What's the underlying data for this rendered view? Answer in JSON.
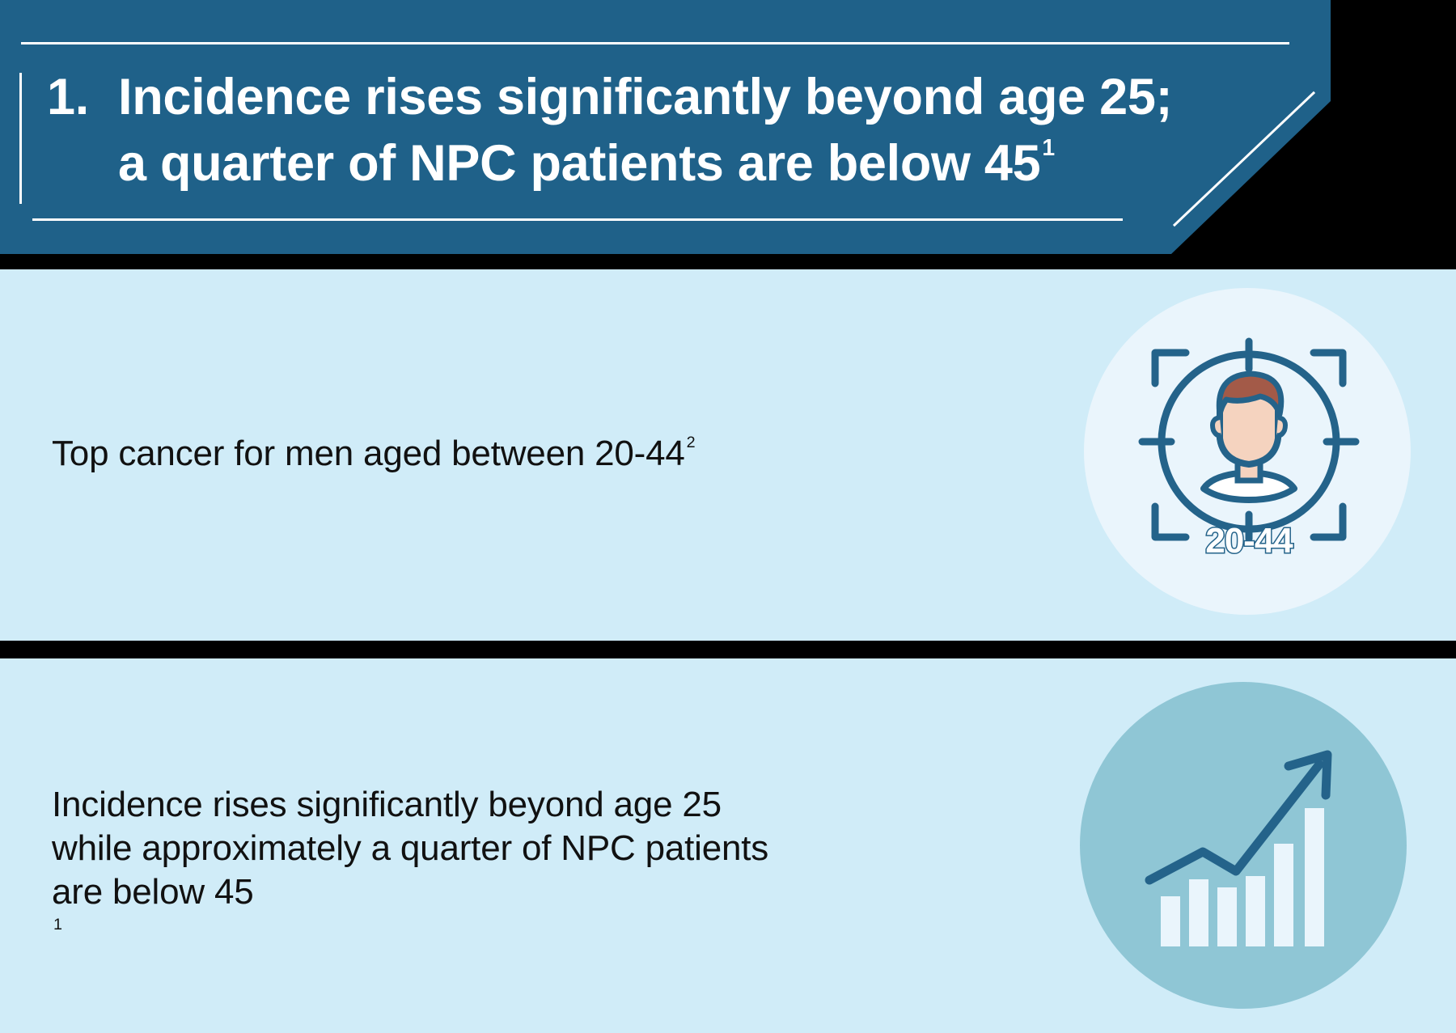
{
  "header": {
    "number": "1.",
    "line1": "Incidence rises significantly beyond age 25;",
    "line2": "a quarter of NPC patients are below 45",
    "line2_footnote": "1"
  },
  "panel1": {
    "text": "Top cancer for men aged between 20-44",
    "footnote": "2",
    "icon_label": "20-44",
    "icon": "target-person-icon"
  },
  "panel2": {
    "lines": [
      "Incidence rises significantly beyond age 25",
      "while approximately a quarter of NPC patients",
      "are below 45"
    ],
    "footnote": "1",
    "icon": "rising-bar-chart-icon"
  },
  "colors": {
    "header_bg": "#1f6189",
    "panel_bg": "#d0ecf8",
    "icon_circle_light": "#eaf5fc",
    "icon_circle_teal": "#8fc6d5",
    "icon_stroke": "#24638a",
    "hair": "#a35a48",
    "skin": "#f5d3bf"
  }
}
